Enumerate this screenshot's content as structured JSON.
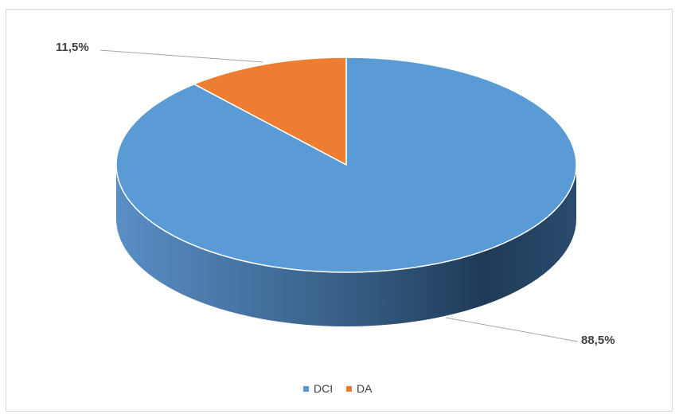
{
  "chart_data": {
    "type": "pie",
    "style": "3d",
    "title": "",
    "series": [
      {
        "name": "DCI",
        "value": 88.5,
        "label": "88,5%",
        "color": "#5b9bd5"
      },
      {
        "name": "DA",
        "value": 11.5,
        "label": "11,5%",
        "color": "#ed7d31"
      }
    ],
    "legend_position": "bottom"
  }
}
